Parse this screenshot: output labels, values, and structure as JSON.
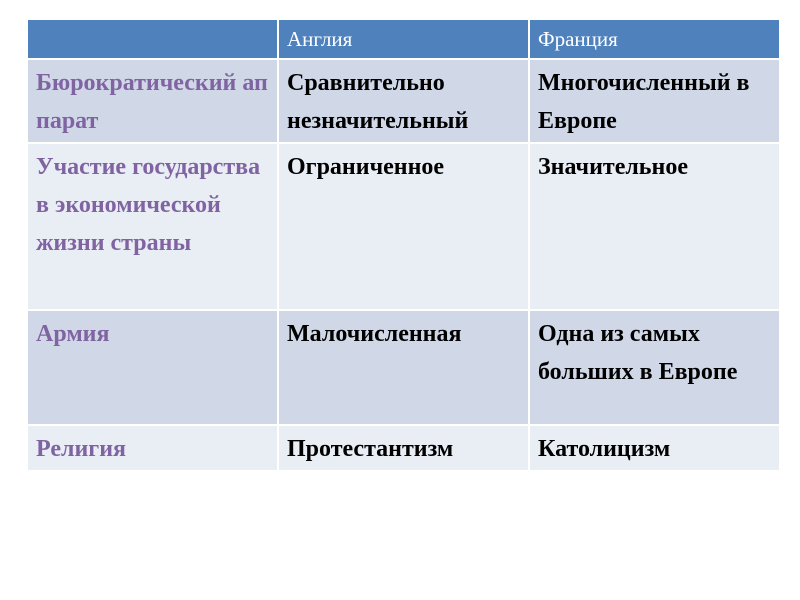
{
  "colors": {
    "header": "#4f81bd",
    "row_dark": "#d0d8e8",
    "row_light": "#e9edf4",
    "row_label": "#8064a2"
  },
  "table": {
    "headers": [
      "",
      "Англия",
      "Франция"
    ],
    "rows": [
      [
        "Бюрократический аппарат",
        "Сравнительно незначительный",
        "Многочисленный в Европе"
      ],
      [
        "Участие государства в экономической жизни страны",
        "Ограниченное",
        "Значительное"
      ],
      [
        "Армия",
        "Малочисленная",
        "Одна из самых больших в Европе"
      ],
      [
        "Религия",
        "Протестантизм",
        "Католицизм"
      ]
    ]
  }
}
